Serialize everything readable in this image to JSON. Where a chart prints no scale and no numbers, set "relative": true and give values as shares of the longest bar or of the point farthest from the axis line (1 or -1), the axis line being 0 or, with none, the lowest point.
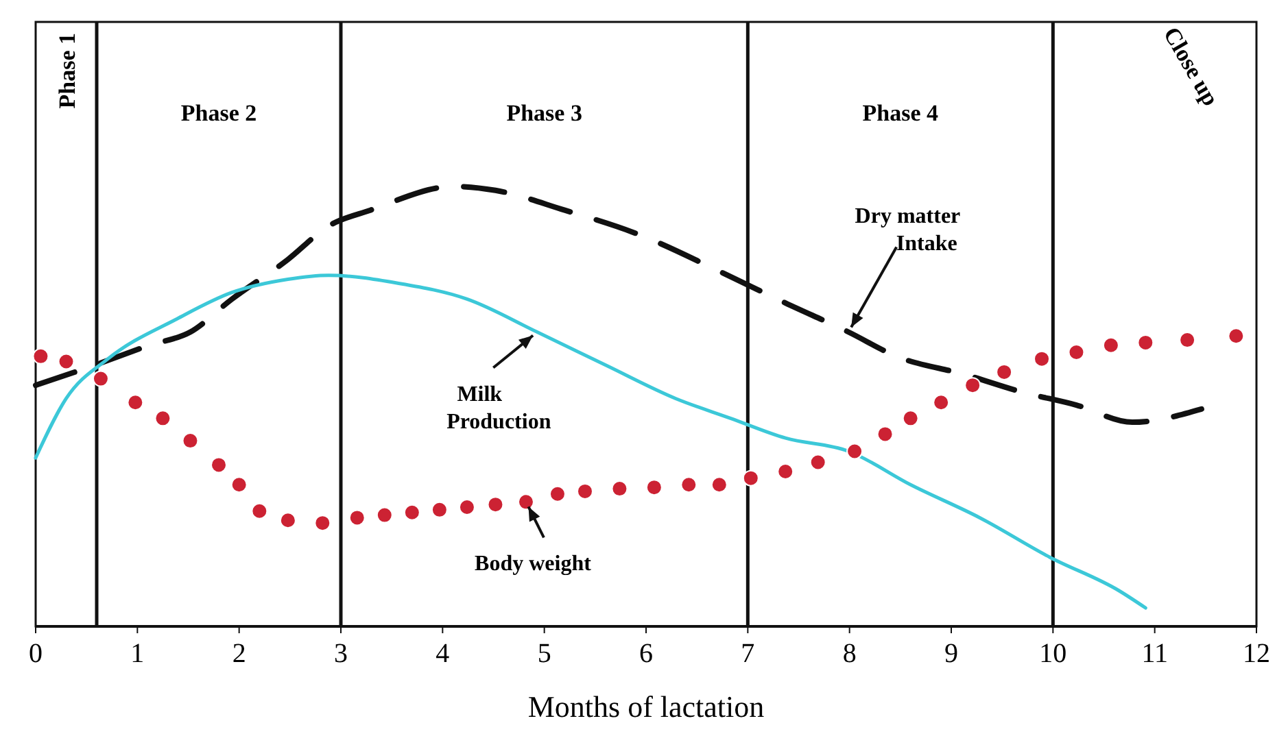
{
  "chart_data": {
    "type": "line",
    "relative": true,
    "xlabel": "Months of lactation",
    "xlim": [
      0,
      12
    ],
    "xticks": [
      0,
      1,
      2,
      3,
      4,
      5,
      6,
      7,
      8,
      9,
      10,
      11,
      12
    ],
    "grid": false,
    "series": [
      {
        "color": "#111111",
        "line_style": "dashed",
        "marker": "none",
        "x": [
          0,
          0.57,
          1.12,
          1.52,
          1.93,
          2.48,
          2.88,
          3.29,
          4.11,
          4.52,
          5.2,
          5.88,
          6.83,
          7.37,
          7.99,
          8.46,
          9.14,
          9.69,
          10.23,
          10.78,
          11.46
        ],
        "values": [
          0.548,
          0.593,
          0.639,
          0.669,
          0.744,
          0.834,
          0.91,
          0.946,
          1,
          0.991,
          0.946,
          0.895,
          0.795,
          0.735,
          0.669,
          0.614,
          0.572,
          0.533,
          0.503,
          0.464,
          0.494
        ]
      },
      {
        "color": "#3cc8d8",
        "line_style": "solid",
        "marker": "none",
        "x": [
          0,
          0.3,
          0.71,
          1.39,
          1.93,
          2.48,
          2.88,
          3.56,
          4.24,
          4.93,
          5.61,
          6.29,
          6.83,
          7.37,
          7.99,
          8.6,
          9.28,
          9.97,
          10.65,
          10.91
        ],
        "values": [
          0.383,
          0.518,
          0.608,
          0.699,
          0.759,
          0.789,
          0.798,
          0.78,
          0.744,
          0.669,
          0.593,
          0.518,
          0.473,
          0.428,
          0.398,
          0.322,
          0.247,
          0.157,
          0.081,
          0.042
        ]
      },
      {
        "type": "scatter",
        "color": "#cc2233",
        "marker": "circle",
        "x": [
          0.05,
          0.3,
          0.64,
          0.98,
          1.25,
          1.52,
          1.8,
          2.0,
          2.2,
          2.48,
          2.82,
          3.16,
          3.43,
          3.7,
          3.97,
          4.24,
          4.52,
          4.82,
          5.13,
          5.4,
          5.74,
          6.08,
          6.42,
          6.72,
          7.03,
          7.37,
          7.69,
          8.05,
          8.35,
          8.6,
          8.9,
          9.21,
          9.52,
          9.89,
          10.23,
          10.57,
          10.91,
          11.32,
          11.8
        ],
        "values": [
          0.614,
          0.602,
          0.563,
          0.509,
          0.473,
          0.422,
          0.367,
          0.322,
          0.262,
          0.241,
          0.235,
          0.247,
          0.253,
          0.259,
          0.265,
          0.271,
          0.277,
          0.283,
          0.301,
          0.307,
          0.313,
          0.316,
          0.322,
          0.322,
          0.337,
          0.352,
          0.373,
          0.398,
          0.437,
          0.473,
          0.509,
          0.548,
          0.578,
          0.608,
          0.623,
          0.639,
          0.645,
          0.651,
          0.66
        ]
      }
    ],
    "ref_lines": [
      {
        "axis": "x",
        "value": 0.6,
        "color": "#111111"
      },
      {
        "axis": "x",
        "value": 3,
        "color": "#111111"
      },
      {
        "axis": "x",
        "value": 7,
        "color": "#111111"
      },
      {
        "axis": "x",
        "value": 10,
        "color": "#111111"
      }
    ],
    "annotations": [
      {
        "text": "Dry matter Intake",
        "x": 7.99,
        "y": 0.669
      },
      {
        "text": "Milk Production",
        "x": 4.93,
        "y": 0.669
      },
      {
        "text": "Body weight",
        "x": 4.82,
        "y": 0.283
      },
      "Phase 1",
      "Phase 2",
      "Phase 3",
      "Phase 4",
      "Close up"
    ]
  }
}
